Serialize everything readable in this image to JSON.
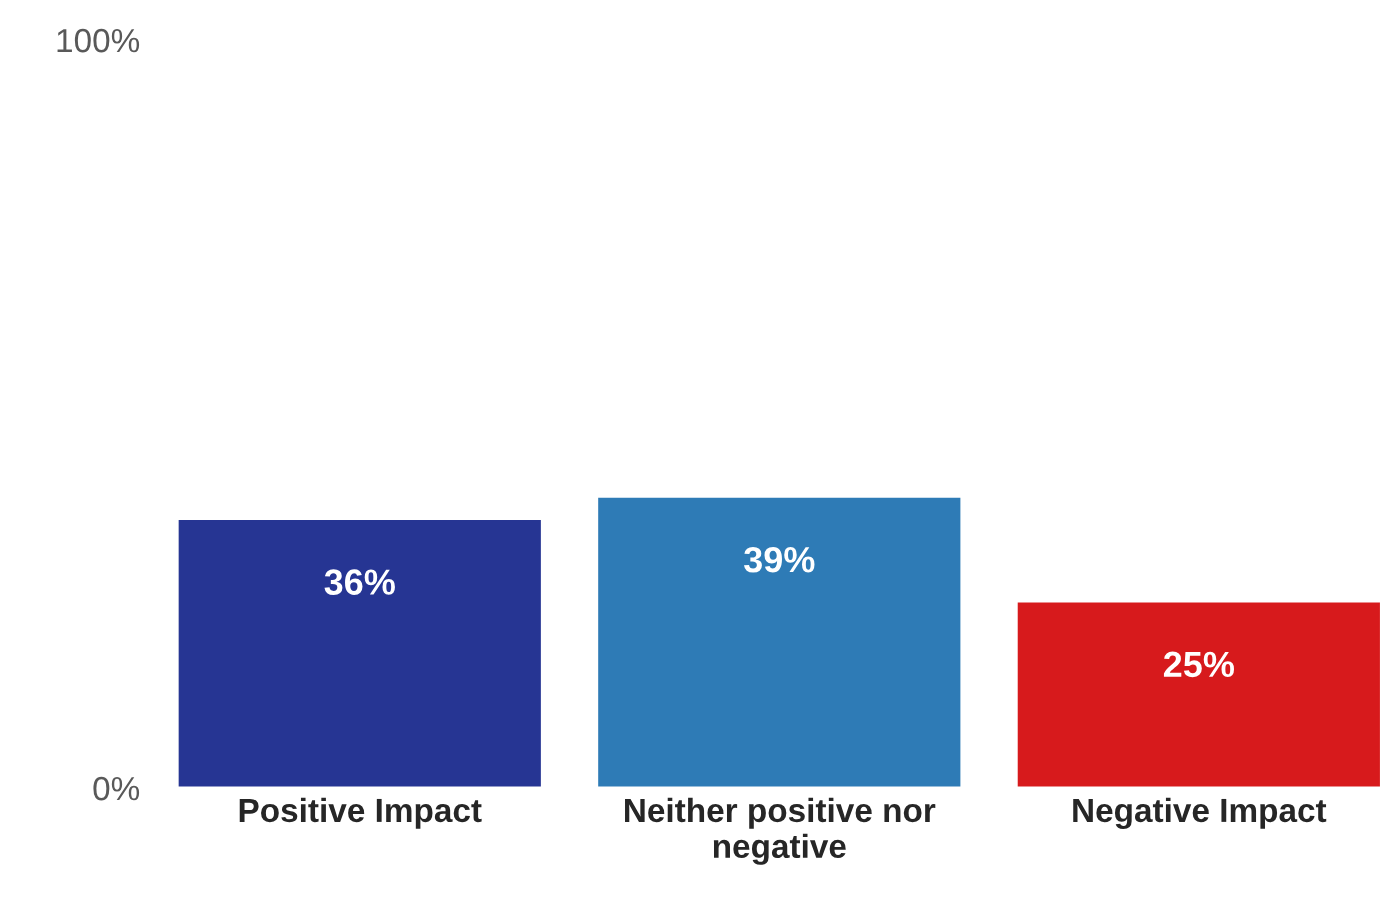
{
  "chart_data": {
    "type": "bar",
    "categories": [
      "Positive Impact",
      "Neither positive nor\nnegative",
      "Negative Impact"
    ],
    "values": [
      36,
      39,
      25
    ],
    "colors": [
      "#263593",
      "#2e7bb6",
      "#d71a1c"
    ],
    "value_labels": [
      "36%",
      "39%",
      "25%"
    ],
    "ylim": [
      0,
      100
    ],
    "yticks": [
      {
        "value": 0,
        "label": "0%"
      },
      {
        "value": 100,
        "label": "100%"
      }
    ],
    "grid": false,
    "legend": false
  }
}
